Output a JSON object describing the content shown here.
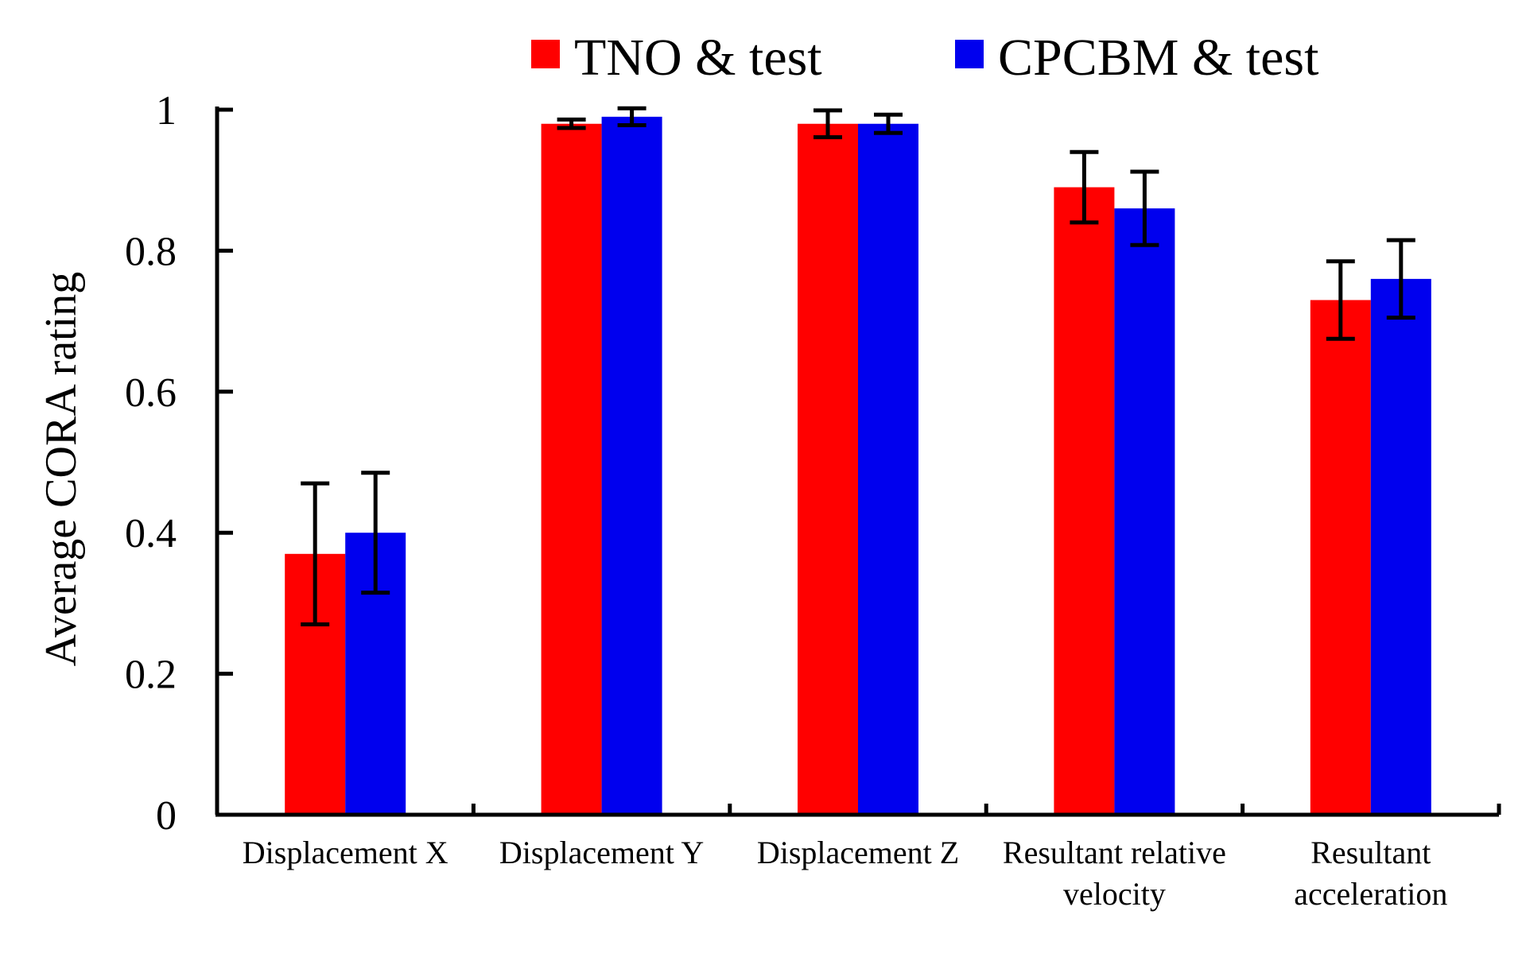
{
  "chart_data": {
    "type": "bar",
    "title": "",
    "xlabel": "",
    "ylabel": "Average CORA rating",
    "ylim": [
      0,
      1
    ],
    "yticks": [
      0,
      0.2,
      0.4,
      0.6,
      0.8,
      1
    ],
    "ytick_labels": [
      "0",
      "0.2",
      "0.4",
      "0.6",
      "0.8",
      "1"
    ],
    "grid": false,
    "legend_position": "top",
    "categories": [
      [
        "Displacement X"
      ],
      [
        "Displacement Y"
      ],
      [
        "Displacement Z"
      ],
      [
        "Resultant relative",
        "velocity"
      ],
      [
        "Resultant",
        "acceleration"
      ]
    ],
    "series": [
      {
        "name": "TNO & test",
        "color": "#ff0000",
        "values": [
          0.37,
          0.98,
          0.98,
          0.89,
          0.73
        ],
        "errors": [
          0.1,
          0.006,
          0.019,
          0.05,
          0.055
        ]
      },
      {
        "name": "CPCBM & test",
        "color": "#0000ee",
        "values": [
          0.4,
          0.99,
          0.98,
          0.86,
          0.76
        ],
        "errors": [
          0.085,
          0.012,
          0.013,
          0.052,
          0.055
        ]
      }
    ]
  }
}
